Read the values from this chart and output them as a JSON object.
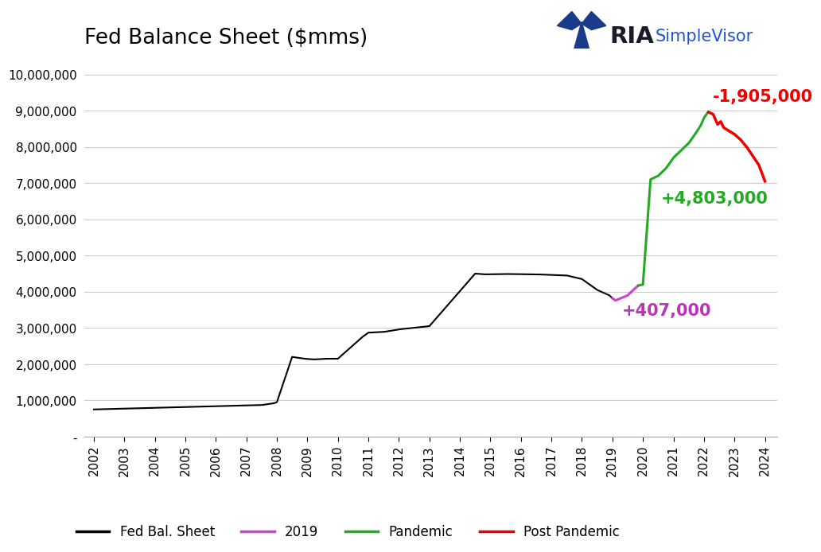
{
  "title": "Fed Balance Sheet ($mms)",
  "title_fontsize": 19,
  "background_color": "#ffffff",
  "grid_color": "#cccccc",
  "ylim": [
    0,
    10500000
  ],
  "yticks": [
    0,
    1000000,
    2000000,
    3000000,
    4000000,
    5000000,
    6000000,
    7000000,
    8000000,
    9000000,
    10000000
  ],
  "ytick_labels": [
    "-",
    "1,000,000",
    "2,000,000",
    "3,000,000",
    "4,000,000",
    "5,000,000",
    "6,000,000",
    "7,000,000",
    "8,000,000",
    "9,000,000",
    "10,000,000"
  ],
  "annotation_pandemic": "+4,803,000",
  "annotation_pandemic_color": "#22aa22",
  "annotation_post_pandemic": "-1,905,000",
  "annotation_post_pandemic_color": "#ee0000",
  "annotation_2019": "+407,000",
  "annotation_2019_color": "#bb33bb",
  "annotation_fontsize": 15,
  "series_black_color": "#000000",
  "series_black_label": "Fed Bal. Sheet",
  "series_pink_color": "#cc44cc",
  "series_pink_label": "2019",
  "series_green_color": "#22aa22",
  "series_green_label": "Pandemic",
  "series_red_color": "#ee0000",
  "series_red_label": "Post Pandemic",
  "logo_ria": "RIA",
  "logo_sv": "SimpleVisor"
}
